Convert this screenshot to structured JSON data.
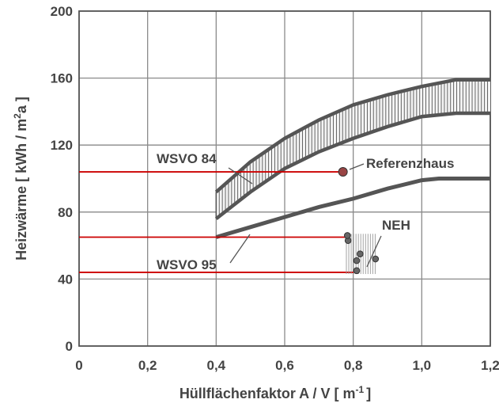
{
  "chart_data": {
    "type": "line",
    "xlabel": "Hüllflächenfaktor A / V  [ m",
    "xlabel_exp": "-1",
    "xlabel_end": "]",
    "ylabel": "Heizwärme  [ kWh / m",
    "ylabel_exp": "2",
    "ylabel_end": "a ]",
    "xlim": [
      0,
      1.2
    ],
    "ylim": [
      0,
      200
    ],
    "x_ticks": [
      0,
      0.2,
      0.4,
      0.6,
      0.8,
      1.0,
      1.2
    ],
    "x_tick_labels": [
      "0",
      "0,2",
      "0,4",
      "0,6",
      "0,8",
      "1,0",
      "1,2"
    ],
    "y_ticks": [
      0,
      40,
      80,
      120,
      160,
      200
    ],
    "y_tick_labels": [
      "0",
      "40",
      "80",
      "120",
      "160",
      "200"
    ],
    "grid": true,
    "bands": [
      {
        "name": "WSVO 84",
        "x": [
          0.4,
          0.5,
          0.6,
          0.7,
          0.8,
          0.9,
          1.0,
          1.1,
          1.2
        ],
        "upper": [
          92,
          110,
          124,
          135,
          144,
          150,
          155,
          159,
          159
        ],
        "lower": [
          76,
          92,
          106,
          116,
          124,
          131,
          137,
          139,
          139
        ]
      }
    ],
    "series": [
      {
        "name": "WSVO 95",
        "x": [
          0.4,
          0.5,
          0.6,
          0.7,
          0.8,
          0.9,
          1.0,
          1.05,
          1.2
        ],
        "values": [
          65,
          71,
          77,
          83,
          88,
          94,
          99,
          100,
          100
        ]
      }
    ],
    "points": [
      {
        "name": "Referenzhaus",
        "x": 0.77,
        "y": 104
      },
      {
        "name": "NEH",
        "x": 0.785,
        "y": 63
      },
      {
        "name": "NEH",
        "x": 0.783,
        "y": 66
      },
      {
        "name": "NEH",
        "x": 0.81,
        "y": 51
      },
      {
        "name": "NEH",
        "x": 0.82,
        "y": 55
      },
      {
        "name": "NEH",
        "x": 0.81,
        "y": 45
      },
      {
        "name": "NEH",
        "x": 0.865,
        "y": 52
      }
    ],
    "neh_band": {
      "x": [
        0.78,
        0.87
      ],
      "y": [
        43,
        67
      ]
    },
    "red_lines": [
      104,
      65,
      44
    ],
    "annotations": [
      "WSVO 84",
      "Referenzhaus",
      "WSVO 95",
      "NEH"
    ],
    "colors": {
      "curve": "#555555",
      "hatch": "#555555",
      "red": "#cc0000",
      "grid": "#8a8a8a",
      "marker": "#994444"
    }
  }
}
